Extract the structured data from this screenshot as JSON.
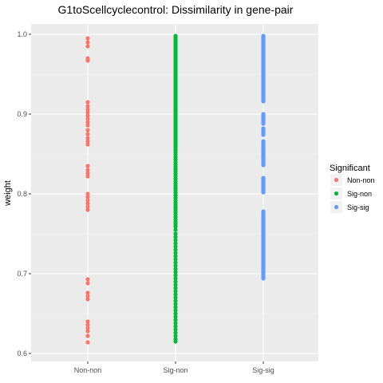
{
  "chart_data": {
    "type": "scatter",
    "title": "G1toScellcyclecontrol: Dissimilarity in gene-pair",
    "xlabel": "",
    "ylabel": "weight",
    "categories": [
      "Non-non",
      "Sig-non",
      "Sig-sig"
    ],
    "ylim": [
      0.6,
      1.0
    ],
    "y_ticks": [
      "0.6",
      "0.7",
      "0.8",
      "0.9",
      "1.0"
    ],
    "grid": true,
    "legend": {
      "title": "Significant",
      "position": "right",
      "entries": [
        "Non-non",
        "Sig-non",
        "Sig-sig"
      ]
    },
    "colors": {
      "Non-non": "#F8766D",
      "Sig-non": "#00BA38",
      "Sig-sig": "#619CFF",
      "panel": "#EBEBEB",
      "grid_major": "#FFFFFF",
      "grid_minor": "#F5F5F5"
    },
    "series": [
      {
        "name": "Non-non",
        "x": "Non-non",
        "y": [
          0.995,
          0.99,
          0.985,
          0.97,
          0.967,
          0.915,
          0.91,
          0.906,
          0.902,
          0.898,
          0.894,
          0.89,
          0.886,
          0.88,
          0.875,
          0.87,
          0.866,
          0.862,
          0.835,
          0.83,
          0.826,
          0.822,
          0.8,
          0.796,
          0.792,
          0.788,
          0.784,
          0.78,
          0.693,
          0.688,
          0.676,
          0.672,
          0.668,
          0.64,
          0.636,
          0.632,
          0.628,
          0.622,
          0.614
        ]
      },
      {
        "name": "Sig-non",
        "x": "Sig-non",
        "y_range_dense": [
          0.615,
          0.998
        ],
        "y": [
          0.998,
          0.996,
          0.994,
          0.992,
          0.99,
          0.988,
          0.986,
          0.984,
          0.982,
          0.98,
          0.978,
          0.976,
          0.974,
          0.972,
          0.97,
          0.968,
          0.966,
          0.964,
          0.962,
          0.96,
          0.958,
          0.956,
          0.954,
          0.952,
          0.95,
          0.948,
          0.946,
          0.944,
          0.942,
          0.94,
          0.938,
          0.936,
          0.934,
          0.932,
          0.93,
          0.928,
          0.926,
          0.924,
          0.922,
          0.92,
          0.918,
          0.916,
          0.914,
          0.912,
          0.91,
          0.908,
          0.906,
          0.904,
          0.902,
          0.9,
          0.898,
          0.896,
          0.894,
          0.892,
          0.89,
          0.888,
          0.886,
          0.884,
          0.882,
          0.88,
          0.878,
          0.876,
          0.874,
          0.872,
          0.87,
          0.868,
          0.866,
          0.864,
          0.862,
          0.86,
          0.858,
          0.855,
          0.852,
          0.849,
          0.846,
          0.843,
          0.84,
          0.837,
          0.834,
          0.831,
          0.828,
          0.825,
          0.822,
          0.819,
          0.816,
          0.813,
          0.81,
          0.807,
          0.804,
          0.801,
          0.798,
          0.795,
          0.792,
          0.789,
          0.786,
          0.783,
          0.78,
          0.777,
          0.774,
          0.771,
          0.768,
          0.765,
          0.762,
          0.759,
          0.755,
          0.75,
          0.746,
          0.742,
          0.738,
          0.734,
          0.73,
          0.726,
          0.722,
          0.718,
          0.714,
          0.71,
          0.706,
          0.702,
          0.698,
          0.694,
          0.69,
          0.686,
          0.682,
          0.678,
          0.674,
          0.67,
          0.666,
          0.662,
          0.658,
          0.654,
          0.65,
          0.646,
          0.642,
          0.638,
          0.634,
          0.63,
          0.626,
          0.622,
          0.618,
          0.615
        ]
      },
      {
        "name": "Sig-sig",
        "x": "Sig-sig",
        "y": [
          0.998,
          0.996,
          0.994,
          0.992,
          0.99,
          0.988,
          0.986,
          0.984,
          0.982,
          0.98,
          0.978,
          0.976,
          0.974,
          0.972,
          0.97,
          0.968,
          0.966,
          0.964,
          0.962,
          0.96,
          0.958,
          0.956,
          0.954,
          0.952,
          0.95,
          0.948,
          0.946,
          0.944,
          0.942,
          0.94,
          0.938,
          0.936,
          0.934,
          0.932,
          0.93,
          0.928,
          0.926,
          0.924,
          0.922,
          0.92,
          0.918,
          0.916,
          0.9,
          0.898,
          0.896,
          0.894,
          0.892,
          0.89,
          0.888,
          0.882,
          0.88,
          0.878,
          0.876,
          0.874,
          0.866,
          0.864,
          0.862,
          0.86,
          0.858,
          0.856,
          0.854,
          0.852,
          0.85,
          0.848,
          0.846,
          0.844,
          0.842,
          0.84,
          0.838,
          0.836,
          0.82,
          0.818,
          0.816,
          0.814,
          0.812,
          0.81,
          0.808,
          0.806,
          0.804,
          0.802,
          0.778,
          0.776,
          0.774,
          0.772,
          0.77,
          0.768,
          0.766,
          0.764,
          0.762,
          0.76,
          0.758,
          0.756,
          0.754,
          0.752,
          0.75,
          0.748,
          0.746,
          0.744,
          0.742,
          0.74,
          0.738,
          0.736,
          0.734,
          0.732,
          0.73,
          0.728,
          0.726,
          0.724,
          0.722,
          0.72,
          0.718,
          0.716,
          0.714,
          0.712,
          0.71,
          0.708,
          0.706,
          0.704,
          0.702,
          0.7,
          0.698,
          0.696,
          0.694
        ]
      }
    ]
  }
}
